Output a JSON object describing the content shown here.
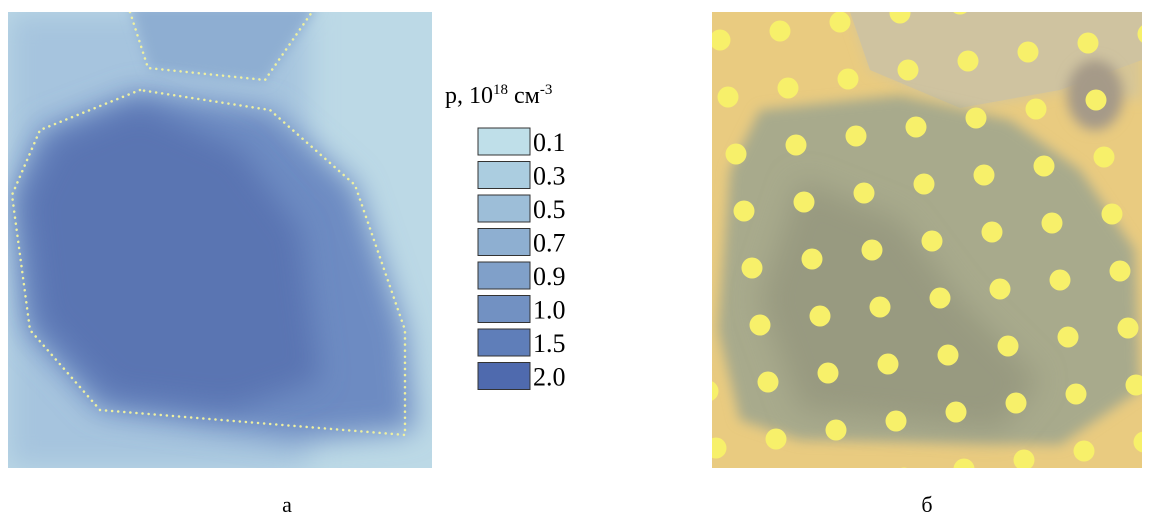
{
  "figure": {
    "legend": {
      "title_parts": [
        "p, 10",
        "18",
        " см",
        "-3"
      ],
      "entries": [
        {
          "label": "0.1",
          "color": "#bfdfe9"
        },
        {
          "label": "0.3",
          "color": "#abcde0"
        },
        {
          "label": "0.5",
          "color": "#9dbed8"
        },
        {
          "label": "0.7",
          "color": "#8eafd1"
        },
        {
          "label": "0.9",
          "color": "#80a0c9"
        },
        {
          "label": "1.0",
          "color": "#7291c2"
        },
        {
          "label": "1.5",
          "color": "#5f7eb9"
        },
        {
          "label": "2.0",
          "color": "#4f6aae"
        }
      ]
    },
    "captions": [
      "а",
      "б"
    ]
  }
}
